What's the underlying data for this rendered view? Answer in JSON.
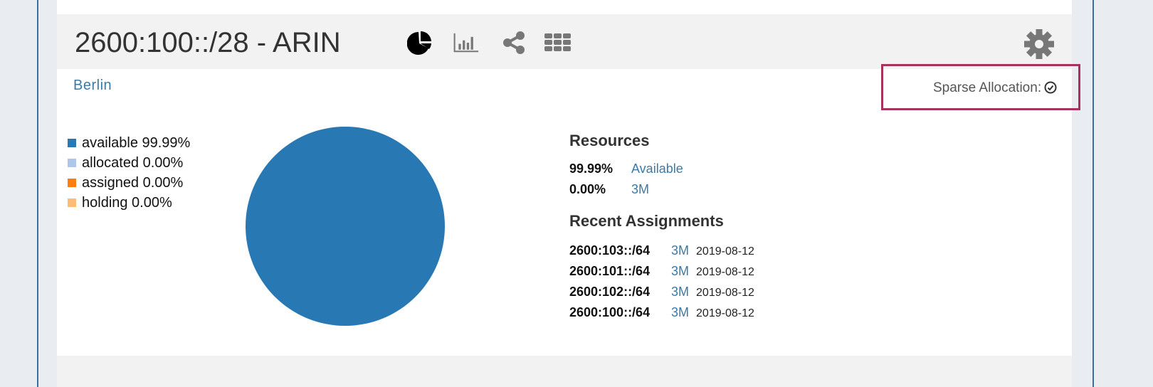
{
  "panel": {
    "title": "2600:100::/28 - ARIN",
    "icons": [
      "pie-chart-icon",
      "bar-chart-icon",
      "share-icon",
      "grid-icon",
      "gear-icon"
    ],
    "location": "Berlin",
    "sparse_allocation_label": "Sparse Allocation:",
    "sparse_allocation_status": "check-circle-icon",
    "highlight_color": "#a8325e"
  },
  "legend": [
    {
      "label": "available 99.99%",
      "color": "#2878b4"
    },
    {
      "label": "allocated 0.00%",
      "color": "#aec7e8"
    },
    {
      "label": "assigned 0.00%",
      "color": "#ff7f0e"
    },
    {
      "label": "holding 0.00%",
      "color": "#ffbb78"
    }
  ],
  "chart_data": {
    "type": "pie",
    "categories": [
      "available",
      "allocated",
      "assigned",
      "holding"
    ],
    "values": [
      99.99,
      0.0,
      0.0,
      0.0
    ],
    "colors": [
      "#2878b4",
      "#aec7e8",
      "#ff7f0e",
      "#ffbb78"
    ]
  },
  "resources": {
    "heading": "Resources",
    "rows": [
      {
        "value": "99.99%",
        "label": "Available"
      },
      {
        "value": "0.00%",
        "label": "3M"
      }
    ]
  },
  "recent": {
    "heading": "Recent Assignments",
    "rows": [
      {
        "prefix": "2600:103::/64",
        "org": "3M",
        "date": "2019-08-12"
      },
      {
        "prefix": "2600:101::/64",
        "org": "3M",
        "date": "2019-08-12"
      },
      {
        "prefix": "2600:102::/64",
        "org": "3M",
        "date": "2019-08-12"
      },
      {
        "prefix": "2600:100::/64",
        "org": "3M",
        "date": "2019-08-12"
      }
    ]
  }
}
